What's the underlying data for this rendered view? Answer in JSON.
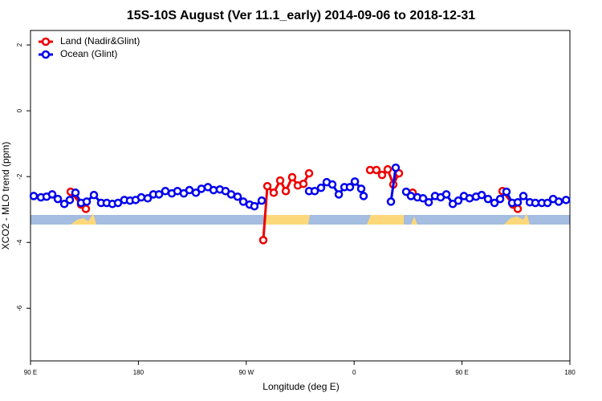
{
  "chart_data": {
    "type": "line",
    "title": "15S-10S August (Ver 11.1_early)   2014-09-06 to 2018-12-31",
    "x_label": "Longitude (deg E)",
    "y_label": "XCO2 - MLO trend (ppm)",
    "xlim": [
      90,
      540
    ],
    "ylim": [
      -7.6,
      2.44
    ],
    "xticks": [
      {
        "value": 90,
        "label": "90 E"
      },
      180,
      {
        "value": 270,
        "label": "90 W"
      },
      {
        "value": 360,
        "label": "0"
      },
      {
        "value": 450,
        "label": "90 E"
      },
      {
        "value": 540,
        "label": "180"
      }
    ],
    "yticks": [
      2,
      0,
      -2,
      -4,
      -6
    ],
    "legend": "top-left",
    "series": [
      {
        "name": "Land (Nadir&Glint)",
        "color": "#ee0000",
        "x": [
          123.5,
          132.2,
          136.2,
          null,
          284.2,
          287.6,
          292.9,
          298.3,
          303.0,
          308.3,
          313.0,
          317.7,
          322.4,
          null,
          373.3,
          378.6,
          383.3,
          388.0,
          392.7,
          397.4,
          null,
          408.8,
          null,
          483.8,
          492.5,
          496.5
        ],
        "values": [
          -2.46,
          -2.85,
          -2.98,
          null,
          -3.93,
          -2.29,
          -2.49,
          -2.12,
          -2.44,
          -2.02,
          -2.27,
          -2.22,
          -1.9,
          null,
          -1.8,
          -1.8,
          -1.95,
          -1.78,
          -2.24,
          -1.9,
          null,
          -2.49,
          null,
          -2.44,
          -2.85,
          -2.98
        ]
      },
      {
        "name": "Ocean (Glint)",
        "color": "#0000ee",
        "x": [
          92.7,
          98.7,
          103.4,
          108.1,
          112.8,
          118.2,
          122.8,
          127.5,
          132.2,
          136.9,
          142.9,
          148.9,
          153.6,
          158.3,
          163.0,
          168.3,
          173.0,
          177.7,
          182.4,
          187.8,
          192.5,
          197.2,
          202.5,
          207.9,
          212.6,
          217.9,
          222.6,
          228.0,
          232.6,
          238.0,
          242.7,
          248.0,
          252.7,
          257.4,
          262.8,
          267.5,
          272.8,
          276.8,
          282.9,
          null,
          322.4,
          327.1,
          332.4,
          337.1,
          341.8,
          347.2,
          351.9,
          356.5,
          360.6,
          365.9,
          367.9,
          null,
          390.7,
          394.7,
          null,
          403.4,
          407.4,
          412.8,
          417.5,
          422.2,
          427.5,
          432.2,
          436.9,
          442.3,
          446.9,
          451.6,
          456.3,
          461.7,
          466.4,
          471.7,
          477.1,
          481.8,
          487.1,
          491.8,
          496.5,
          501.2,
          506.6,
          511.2,
          516.6,
          521.3,
          526.0,
          530.7,
          536.8
        ],
        "values": [
          -2.59,
          -2.63,
          -2.61,
          -2.54,
          -2.68,
          -2.83,
          -2.71,
          -2.49,
          -2.8,
          -2.76,
          -2.56,
          -2.8,
          -2.8,
          -2.83,
          -2.8,
          -2.71,
          -2.73,
          -2.71,
          -2.63,
          -2.66,
          -2.54,
          -2.54,
          -2.44,
          -2.51,
          -2.44,
          -2.51,
          -2.41,
          -2.49,
          -2.37,
          -2.32,
          -2.41,
          -2.39,
          -2.44,
          -2.54,
          -2.61,
          -2.76,
          -2.85,
          -2.9,
          -2.73,
          null,
          -2.44,
          -2.44,
          -2.34,
          -2.17,
          -2.24,
          -2.54,
          -2.32,
          -2.32,
          -2.15,
          -2.37,
          -2.59,
          null,
          -2.76,
          -1.73,
          null,
          -2.46,
          -2.59,
          -2.63,
          -2.66,
          -2.78,
          -2.59,
          -2.63,
          -2.54,
          -2.83,
          -2.73,
          -2.59,
          -2.66,
          -2.61,
          -2.56,
          -2.68,
          -2.8,
          -2.68,
          -2.46,
          -2.8,
          -2.78,
          -2.59,
          -2.78,
          -2.8,
          -2.8,
          -2.8,
          -2.68,
          -2.76,
          -2.71
        ]
      }
    ]
  }
}
